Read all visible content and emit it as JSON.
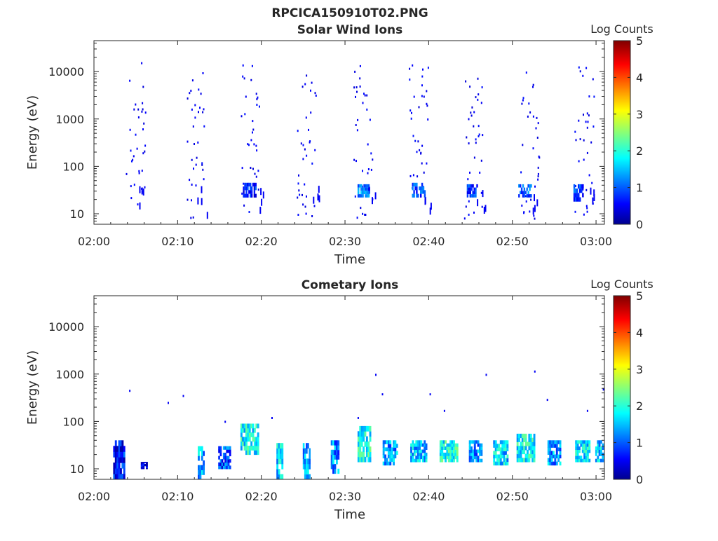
{
  "figure": {
    "suptitle": "RPCICA150910T02.PNG"
  },
  "chart_data": [
    {
      "type": "heatmap",
      "title": "Solar Wind Ions",
      "xlabel": "Time",
      "ylabel": "Energy (eV)",
      "x_ticks": [
        "02:00",
        "02:10",
        "02:20",
        "02:30",
        "02:40",
        "02:50",
        "03:00"
      ],
      "y_ticks": [
        "10",
        "100",
        "1000",
        "10000"
      ],
      "y_scale": "log",
      "xlim": [
        "02:00",
        "03:01"
      ],
      "ylim": [
        6,
        45000
      ],
      "colorbar": {
        "label": "Log Counts",
        "ticks": [
          "0",
          "1",
          "2",
          "3",
          "4",
          "5"
        ],
        "range": [
          0,
          5
        ]
      },
      "scan_starts_min": [
        3.8,
        10.8,
        17.5,
        24.2,
        31.0,
        37.6,
        44.2,
        50.9,
        57.4
      ],
      "low_energy_blobs": [
        {
          "t": 18.6,
          "e_low": 22,
          "e_high": 45,
          "w": 1.6,
          "value": 0.7
        },
        {
          "t": 32.2,
          "e_low": 22,
          "e_high": 42,
          "w": 1.4,
          "value": 1.2
        },
        {
          "t": 38.8,
          "e_low": 22,
          "e_high": 45,
          "w": 1.6,
          "value": 0.9
        },
        {
          "t": 45.2,
          "e_low": 22,
          "e_high": 42,
          "w": 1.3,
          "value": 0.8
        },
        {
          "t": 51.5,
          "e_low": 22,
          "e_high": 42,
          "w": 1.6,
          "value": 1.0
        },
        {
          "t": 57.9,
          "e_low": 18,
          "e_high": 42,
          "w": 1.2,
          "value": 0.8
        }
      ]
    },
    {
      "type": "heatmap",
      "title": "Cometary Ions",
      "xlabel": "Time",
      "ylabel": "Energy (eV)",
      "x_ticks": [
        "02:00",
        "02:10",
        "02:20",
        "02:30",
        "02:40",
        "02:50",
        "03:00"
      ],
      "y_ticks": [
        "10",
        "100",
        "1000",
        "10000"
      ],
      "y_scale": "log",
      "xlim": [
        "02:00",
        "03:01"
      ],
      "ylim": [
        6,
        45000
      ],
      "colorbar": {
        "label": "Log Counts",
        "ticks": [
          "0",
          "1",
          "2",
          "3",
          "4",
          "5"
        ],
        "range": [
          0,
          5
        ]
      },
      "bands": [
        {
          "t": 3.0,
          "w": 1.4,
          "e_low": 6,
          "e_high": 40,
          "value": 0.6
        },
        {
          "t": 6.0,
          "w": 0.8,
          "e_low": 10,
          "e_high": 14,
          "value": 0.3
        },
        {
          "t": 12.8,
          "w": 0.8,
          "e_low": 6,
          "e_high": 30,
          "value": 1.4
        },
        {
          "t": 15.6,
          "w": 1.5,
          "e_low": 10,
          "e_high": 30,
          "value": 0.9
        },
        {
          "t": 18.6,
          "w": 2.2,
          "e_low": 20,
          "e_high": 90,
          "value": 1.8
        },
        {
          "t": 22.2,
          "w": 0.8,
          "e_low": 6,
          "e_high": 35,
          "value": 1.6
        },
        {
          "t": 25.4,
          "w": 0.9,
          "e_low": 6,
          "e_high": 35,
          "value": 1.3
        },
        {
          "t": 28.8,
          "w": 1.0,
          "e_low": 8,
          "e_high": 40,
          "value": 1.2
        },
        {
          "t": 32.3,
          "w": 1.6,
          "e_low": 14,
          "e_high": 80,
          "value": 1.9
        },
        {
          "t": 35.4,
          "w": 1.8,
          "e_low": 12,
          "e_high": 40,
          "value": 1.3
        },
        {
          "t": 38.8,
          "w": 2.0,
          "e_low": 14,
          "e_high": 40,
          "value": 1.5
        },
        {
          "t": 42.4,
          "w": 2.2,
          "e_low": 14,
          "e_high": 40,
          "value": 1.9
        },
        {
          "t": 45.6,
          "w": 1.6,
          "e_low": 14,
          "e_high": 40,
          "value": 1.2
        },
        {
          "t": 48.6,
          "w": 1.8,
          "e_low": 12,
          "e_high": 40,
          "value": 1.6
        },
        {
          "t": 51.6,
          "w": 2.2,
          "e_low": 14,
          "e_high": 55,
          "value": 1.8
        },
        {
          "t": 55.0,
          "w": 1.6,
          "e_low": 12,
          "e_high": 40,
          "value": 1.3
        },
        {
          "t": 58.4,
          "w": 1.8,
          "e_low": 14,
          "e_high": 40,
          "value": 1.7
        },
        {
          "t": 60.4,
          "w": 1.0,
          "e_low": 14,
          "e_high": 40,
          "value": 1.6
        }
      ],
      "sparse_points": [
        {
          "t": 4.2,
          "e": 450
        },
        {
          "t": 8.8,
          "e": 250
        },
        {
          "t": 10.6,
          "e": 350
        },
        {
          "t": 31.5,
          "e": 120
        },
        {
          "t": 33.6,
          "e": 980
        },
        {
          "t": 34.4,
          "e": 380
        },
        {
          "t": 40.1,
          "e": 380
        },
        {
          "t": 41.8,
          "e": 170
        },
        {
          "t": 46.8,
          "e": 980
        },
        {
          "t": 52.6,
          "e": 1150
        },
        {
          "t": 54.1,
          "e": 290
        },
        {
          "t": 58.9,
          "e": 170
        },
        {
          "t": 60.8,
          "e": 480
        },
        {
          "t": 15.6,
          "e": 100
        },
        {
          "t": 21.2,
          "e": 120
        }
      ]
    }
  ]
}
